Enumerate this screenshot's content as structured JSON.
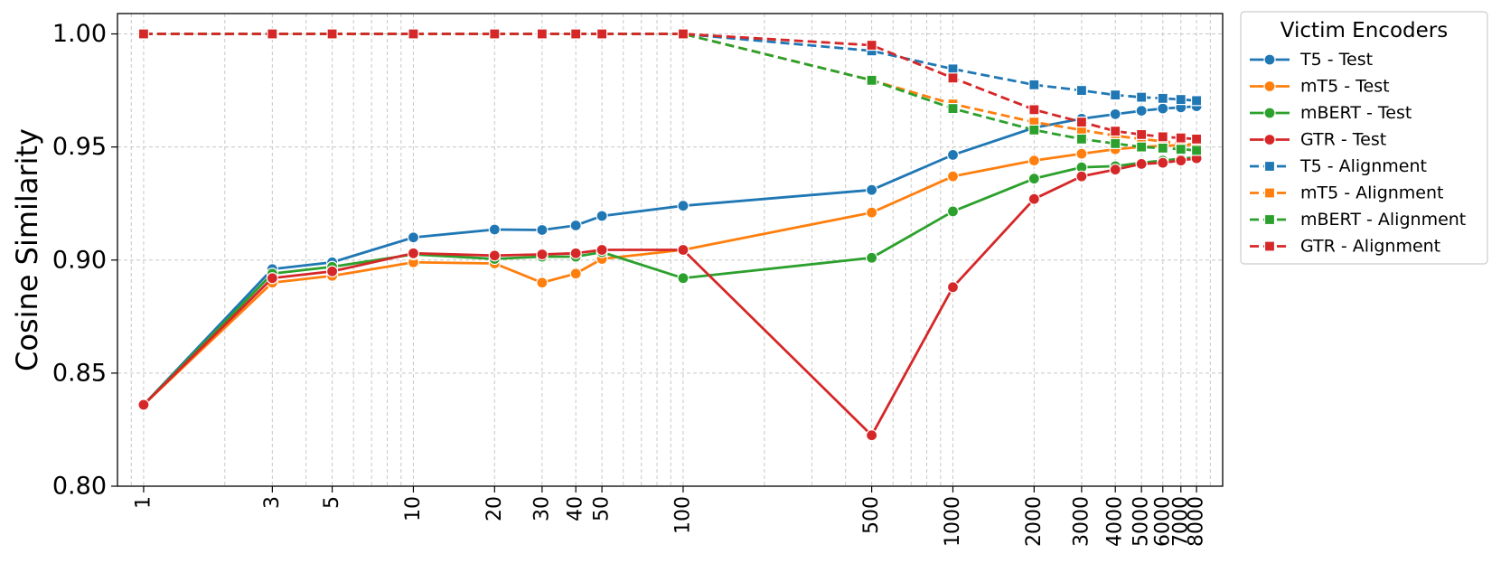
{
  "chart_data": {
    "type": "line",
    "xscale": "log",
    "xlim": [
      0.8,
      10000
    ],
    "ylim": [
      0.8,
      1.009
    ],
    "xticks": [
      1,
      3,
      5,
      10,
      20,
      30,
      40,
      50,
      100,
      500,
      1000,
      2000,
      3000,
      4000,
      5000,
      6000,
      7000,
      8000
    ],
    "xtick_labels": [
      "1",
      "3",
      "5",
      "10",
      "20",
      "30",
      "40",
      "50",
      "100",
      "500",
      "1000",
      "2000",
      "3000",
      "4000",
      "5000",
      "6000",
      "7000",
      "8000"
    ],
    "yticks": [
      0.8,
      0.85,
      0.9,
      0.95,
      1.0
    ],
    "ytick_labels": [
      "0.80",
      "0.85",
      "0.90",
      "0.95",
      "1.00"
    ],
    "ylabel": "Cosine Similarity",
    "xlabel": "",
    "grid": "major and minor, dashed",
    "legend": {
      "title": "Victim Encoders",
      "placement": "outside right, top"
    },
    "x": [
      1,
      3,
      5,
      10,
      20,
      30,
      40,
      50,
      100,
      500,
      1000,
      2000,
      3000,
      4000,
      5000,
      6000,
      7000,
      8000
    ],
    "series": [
      {
        "name": "T5 - Test",
        "color": "#1f77b4",
        "marker": "circle",
        "dash": "solid",
        "values": [
          0.836,
          0.896,
          0.899,
          0.91,
          0.9135,
          0.9133,
          0.9153,
          0.9195,
          0.924,
          0.931,
          0.9465,
          0.9585,
          0.9625,
          0.9645,
          0.966,
          0.967,
          0.9675,
          0.968
        ]
      },
      {
        "name": "mT5 - Test",
        "color": "#ff7f0e",
        "marker": "circle",
        "dash": "solid",
        "values": [
          0.836,
          0.89,
          0.893,
          0.899,
          0.8985,
          0.89,
          0.894,
          0.9005,
          0.9045,
          0.921,
          0.937,
          0.944,
          0.947,
          0.949,
          0.95,
          0.9505,
          0.9508,
          0.951
        ]
      },
      {
        "name": "mBERT - Test",
        "color": "#2ca02c",
        "marker": "circle",
        "dash": "solid",
        "values": [
          0.836,
          0.894,
          0.897,
          0.9025,
          0.9005,
          0.9015,
          0.9015,
          0.9035,
          0.892,
          0.901,
          0.9215,
          0.936,
          0.941,
          0.9415,
          0.943,
          0.944,
          0.9448,
          0.9455
        ]
      },
      {
        "name": "GTR - Test",
        "color": "#d62728",
        "marker": "circle",
        "dash": "solid",
        "values": [
          0.836,
          0.892,
          0.895,
          0.903,
          0.902,
          0.9025,
          0.903,
          0.9045,
          0.9045,
          0.8225,
          0.888,
          0.927,
          0.937,
          0.94,
          0.9425,
          0.943,
          0.944,
          0.945
        ]
      },
      {
        "name": "T5 - Alignment",
        "color": "#1f77b4",
        "marker": "square",
        "dash": "dashed",
        "values": [
          1.0,
          1.0,
          1.0,
          1.0,
          1.0,
          1.0,
          1.0,
          1.0,
          1.0,
          0.9925,
          0.9845,
          0.9775,
          0.975,
          0.973,
          0.972,
          0.9715,
          0.971,
          0.9705
        ]
      },
      {
        "name": "mT5 - Alignment",
        "color": "#ff7f0e",
        "marker": "square",
        "dash": "dashed",
        "values": [
          1.0,
          1.0,
          1.0,
          1.0,
          1.0,
          1.0,
          1.0,
          1.0,
          1.0,
          0.9795,
          0.969,
          0.961,
          0.9575,
          0.955,
          0.9535,
          0.9525,
          0.9515,
          0.951
        ]
      },
      {
        "name": "mBERT - Alignment",
        "color": "#2ca02c",
        "marker": "square",
        "dash": "dashed",
        "values": [
          1.0,
          1.0,
          1.0,
          1.0,
          1.0,
          1.0,
          1.0,
          1.0,
          1.0,
          0.9795,
          0.967,
          0.9575,
          0.9535,
          0.9515,
          0.95,
          0.9495,
          0.949,
          0.9485
        ]
      },
      {
        "name": "GTR - Alignment",
        "color": "#d62728",
        "marker": "square",
        "dash": "dashed",
        "values": [
          1.0,
          1.0,
          1.0,
          1.0,
          1.0,
          1.0,
          1.0,
          1.0,
          1.0,
          0.995,
          0.9805,
          0.9665,
          0.961,
          0.957,
          0.9555,
          0.9545,
          0.954,
          0.9535
        ]
      }
    ]
  }
}
